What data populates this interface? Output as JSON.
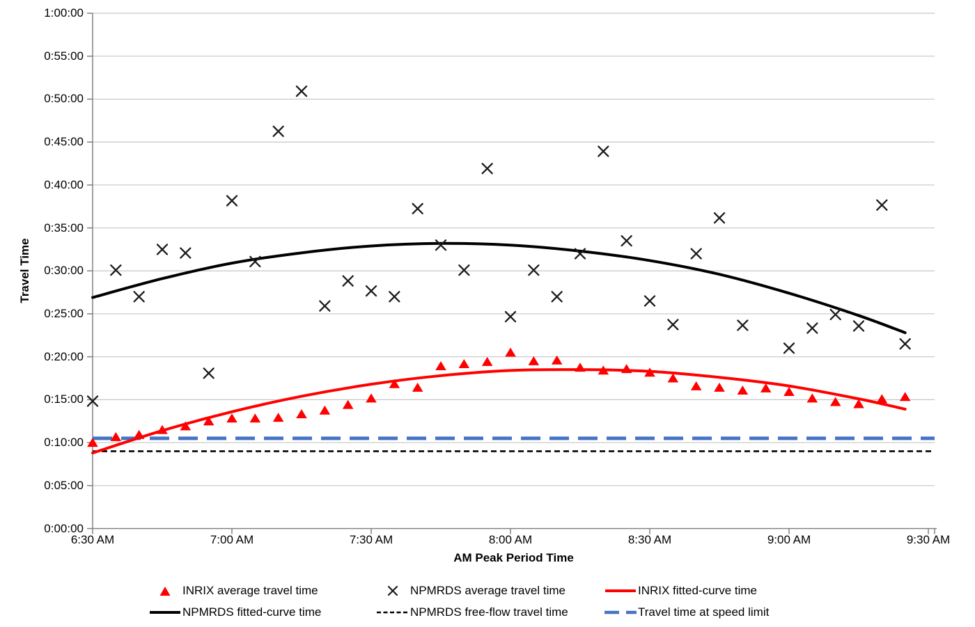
{
  "chart_data": {
    "type": "scatter",
    "title": "",
    "xlabel": "AM Peak Period Time",
    "ylabel": "Travel Time",
    "x_ticks": [
      "6:30 AM",
      "7:00 AM",
      "7:30 AM",
      "8:00 AM",
      "8:30 AM",
      "9:00 AM",
      "9:30 AM"
    ],
    "y_ticks": [
      "0:00:00",
      "0:05:00",
      "0:10:00",
      "0:15:00",
      "0:20:00",
      "0:25:00",
      "0:30:00",
      "0:35:00",
      "0:40:00",
      "0:45:00",
      "0:50:00",
      "0:55:00",
      "1:00:00"
    ],
    "x_range": [
      "6:30 AM",
      "9:30 AM"
    ],
    "y_range": [
      "0:00:00",
      "1:00:00"
    ],
    "grid": "horizontal-only",
    "legend_position": "bottom",
    "colors": {
      "red": "#FF0000",
      "blue": "#4472C4",
      "black": "#000000",
      "grid": "#C6C6C6",
      "axis": "#808080",
      "text": "#000000"
    },
    "series": [
      {
        "name": "INRIX average travel time",
        "type": "scatter",
        "marker": "triangle",
        "color": "#FF0000",
        "points": [
          [
            "6:30 AM",
            "0:10:00"
          ],
          [
            "6:35 AM",
            "0:10:40"
          ],
          [
            "6:40 AM",
            "0:10:55"
          ],
          [
            "6:45 AM",
            "0:11:30"
          ],
          [
            "6:50 AM",
            "0:11:55"
          ],
          [
            "6:55 AM",
            "0:12:30"
          ],
          [
            "7:00 AM",
            "0:12:50"
          ],
          [
            "7:05 AM",
            "0:12:50"
          ],
          [
            "7:10 AM",
            "0:12:55"
          ],
          [
            "7:15 AM",
            "0:13:20"
          ],
          [
            "7:20 AM",
            "0:13:45"
          ],
          [
            "7:25 AM",
            "0:14:25"
          ],
          [
            "7:30 AM",
            "0:15:10"
          ],
          [
            "7:35 AM",
            "0:16:50"
          ],
          [
            "7:40 AM",
            "0:16:25"
          ],
          [
            "7:45 AM",
            "0:18:55"
          ],
          [
            "7:50 AM",
            "0:19:10"
          ],
          [
            "7:55 AM",
            "0:19:25"
          ],
          [
            "8:00 AM",
            "0:20:30"
          ],
          [
            "8:05 AM",
            "0:19:30"
          ],
          [
            "8:10 AM",
            "0:19:35"
          ],
          [
            "8:15 AM",
            "0:18:45"
          ],
          [
            "8:20 AM",
            "0:18:25"
          ],
          [
            "8:25 AM",
            "0:18:35"
          ],
          [
            "8:30 AM",
            "0:18:10"
          ],
          [
            "8:35 AM",
            "0:17:30"
          ],
          [
            "8:40 AM",
            "0:16:35"
          ],
          [
            "8:45 AM",
            "0:16:25"
          ],
          [
            "8:50 AM",
            "0:16:05"
          ],
          [
            "8:55 AM",
            "0:16:20"
          ],
          [
            "9:00 AM",
            "0:15:55"
          ],
          [
            "9:05 AM",
            "0:15:10"
          ],
          [
            "9:10 AM",
            "0:14:45"
          ],
          [
            "9:15 AM",
            "0:14:30"
          ],
          [
            "9:20 AM",
            "0:15:05"
          ],
          [
            "9:25 AM",
            "0:15:20"
          ]
        ]
      },
      {
        "name": "NPMRDS average travel time",
        "type": "scatter",
        "marker": "x",
        "color": "#000000",
        "points": [
          [
            "6:30 AM",
            "0:14:50"
          ],
          [
            "6:35 AM",
            "0:30:05"
          ],
          [
            "6:40 AM",
            "0:27:00"
          ],
          [
            "6:45 AM",
            "0:32:30"
          ],
          [
            "6:50 AM",
            "0:32:05"
          ],
          [
            "6:55 AM",
            "0:18:05"
          ],
          [
            "7:00 AM",
            "0:38:10"
          ],
          [
            "7:05 AM",
            "0:31:05"
          ],
          [
            "7:10 AM",
            "0:46:15"
          ],
          [
            "7:15 AM",
            "0:50:55"
          ],
          [
            "7:20 AM",
            "0:25:55"
          ],
          [
            "7:25 AM",
            "0:28:50"
          ],
          [
            "7:30 AM",
            "0:27:40"
          ],
          [
            "7:35 AM",
            "0:27:00"
          ],
          [
            "7:40 AM",
            "0:37:15"
          ],
          [
            "7:45 AM",
            "0:33:00"
          ],
          [
            "7:50 AM",
            "0:30:05"
          ],
          [
            "7:55 AM",
            "0:41:55"
          ],
          [
            "8:00 AM",
            "0:24:40"
          ],
          [
            "8:05 AM",
            "0:30:05"
          ],
          [
            "8:10 AM",
            "0:27:00"
          ],
          [
            "8:15 AM",
            "0:32:00"
          ],
          [
            "8:20 AM",
            "0:43:55"
          ],
          [
            "8:25 AM",
            "0:33:30"
          ],
          [
            "8:30 AM",
            "0:26:30"
          ],
          [
            "8:35 AM",
            "0:23:45"
          ],
          [
            "8:40 AM",
            "0:32:00"
          ],
          [
            "8:45 AM",
            "0:36:10"
          ],
          [
            "8:50 AM",
            "0:23:40"
          ],
          [
            "9:00 AM",
            "0:21:00"
          ],
          [
            "9:05 AM",
            "0:23:20"
          ],
          [
            "9:10 AM",
            "0:24:55"
          ],
          [
            "9:15 AM",
            "0:23:35"
          ],
          [
            "9:20 AM",
            "0:37:40"
          ],
          [
            "9:25 AM",
            "0:21:30"
          ]
        ]
      },
      {
        "name": "INRIX fitted-curve time",
        "type": "line",
        "color": "#FF0000",
        "width": 4,
        "samples_minutes": [
          [
            "6:30 AM",
            8.8
          ],
          [
            "6:45 AM",
            11.4
          ],
          [
            "7:00 AM",
            13.6
          ],
          [
            "7:15 AM",
            15.4
          ],
          [
            "7:30 AM",
            16.8
          ],
          [
            "7:45 AM",
            17.8
          ],
          [
            "8:00 AM",
            18.4
          ],
          [
            "8:15 AM",
            18.5
          ],
          [
            "8:30 AM",
            18.3
          ],
          [
            "8:45 AM",
            17.6
          ],
          [
            "9:00 AM",
            16.6
          ],
          [
            "9:15 AM",
            15.1
          ],
          [
            "9:25 AM",
            13.9
          ]
        ]
      },
      {
        "name": "NPMRDS fitted-curve time",
        "type": "line",
        "color": "#000000",
        "width": 4,
        "samples_minutes": [
          [
            "6:30 AM",
            26.9
          ],
          [
            "6:45 AM",
            29.1
          ],
          [
            "7:00 AM",
            30.9
          ],
          [
            "7:15 AM",
            32.1
          ],
          [
            "7:30 AM",
            32.9
          ],
          [
            "7:45 AM",
            33.2
          ],
          [
            "8:00 AM",
            33.0
          ],
          [
            "8:15 AM",
            32.3
          ],
          [
            "8:30 AM",
            31.2
          ],
          [
            "8:45 AM",
            29.6
          ],
          [
            "9:00 AM",
            27.4
          ],
          [
            "9:15 AM",
            24.8
          ],
          [
            "9:25 AM",
            22.8
          ]
        ]
      },
      {
        "name": "NPMRDS free-flow travel time",
        "type": "hline",
        "style": "dash-short",
        "color": "#000000",
        "value": "0:09:00"
      },
      {
        "name": "Travel time at speed limit",
        "type": "hline",
        "style": "dash-long",
        "color": "#4472C4",
        "value": "0:10:30"
      }
    ],
    "legend": {
      "rows": [
        [
          {
            "swatch": "triangle-red",
            "label": "INRIX average travel time"
          },
          {
            "swatch": "x-black",
            "label": "NPMRDS average travel time"
          },
          {
            "swatch": "line-red",
            "label": "INRIX fitted-curve time"
          }
        ],
        [
          {
            "swatch": "line-black",
            "label": "NPMRDS fitted-curve time"
          },
          {
            "swatch": "dash-black",
            "label": "NPMRDS free-flow travel time"
          },
          {
            "swatch": "dash-blue",
            "label": "Travel time at speed limit"
          }
        ]
      ]
    }
  }
}
